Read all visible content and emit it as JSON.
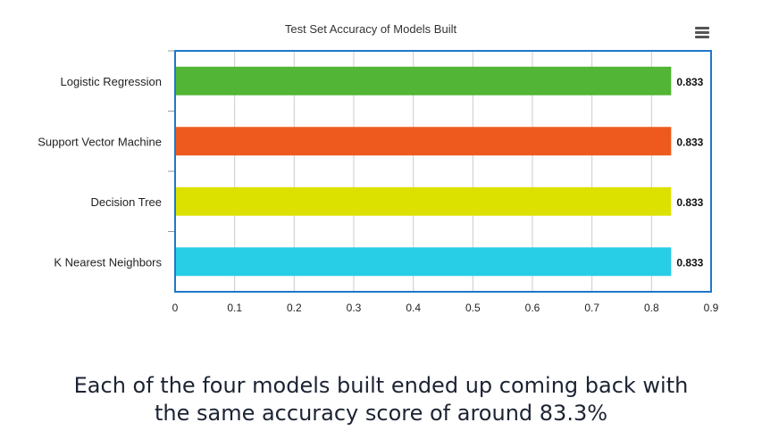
{
  "chart_data": {
    "type": "bar",
    "orientation": "horizontal",
    "title": "Test Set Accuracy of Models Built",
    "categories": [
      "Logistic Regression",
      "Support Vector Machine",
      "Decision Tree",
      "K Nearest Neighbors"
    ],
    "values": [
      0.833,
      0.833,
      0.833,
      0.833
    ],
    "value_labels": [
      "0.833",
      "0.833",
      "0.833",
      "0.833"
    ],
    "colors": [
      "#52b535",
      "#ee5a1d",
      "#dde100",
      "#28cde6"
    ],
    "xlim": [
      0,
      0.9
    ],
    "xticks": [
      "0",
      "0.1",
      "0.2",
      "0.3",
      "0.4",
      "0.5",
      "0.6",
      "0.7",
      "0.8",
      "0.9"
    ],
    "xlabel": "",
    "ylabel": "",
    "grid": true,
    "legend": "none",
    "frame_color": "#1f78c8",
    "grid_color": "#cccccc"
  },
  "menu_icon": "hamburger-menu-icon",
  "caption": {
    "line1": "Each of the four models built ended up coming back with",
    "line2": "the same accuracy score of around 83.3%"
  }
}
